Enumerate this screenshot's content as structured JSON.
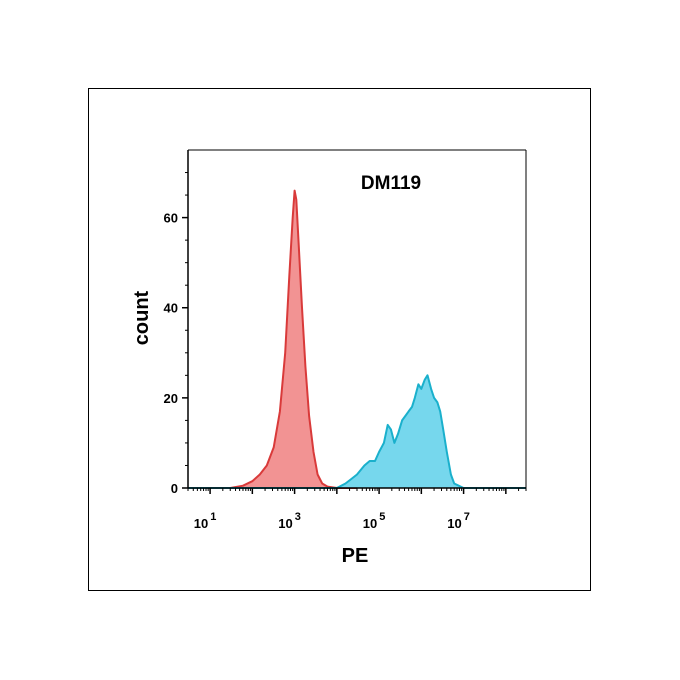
{
  "chart_data": {
    "type": "area",
    "title": "DM119",
    "xlabel": "PE",
    "ylabel": "count",
    "x_scale": "log",
    "xlim": [
      3,
      300000000
    ],
    "ylim": [
      0,
      75
    ],
    "x_ticks": [
      {
        "value": 10,
        "base": "10",
        "exp": "1"
      },
      {
        "value": 1000,
        "base": "10",
        "exp": "3"
      },
      {
        "value": 100000,
        "base": "10",
        "exp": "5"
      },
      {
        "value": 10000000,
        "base": "10",
        "exp": "7"
      }
    ],
    "y_ticks": [
      {
        "value": 0,
        "label": "0"
      },
      {
        "value": 20,
        "label": "20"
      },
      {
        "value": 40,
        "label": "40"
      },
      {
        "value": 60,
        "label": "60"
      }
    ],
    "grid": false,
    "legend": "none",
    "series": [
      {
        "color": "#f08080",
        "line_color": "#d93a3a",
        "x": [
          3,
          30,
          60,
          100,
          150,
          220,
          320,
          450,
          600,
          750,
          900,
          1000,
          1100,
          1250,
          1500,
          1800,
          2200,
          2800,
          3500,
          4500,
          6000,
          10000,
          30000
        ],
        "y": [
          0,
          0,
          0.5,
          1.5,
          3,
          5,
          9,
          17,
          30,
          47,
          60,
          66,
          64,
          54,
          40,
          27,
          16,
          8,
          3,
          1,
          0.3,
          0,
          0
        ]
      },
      {
        "color": "#5ed0ea",
        "line_color": "#1ab0cc",
        "x": [
          3,
          3000,
          10000,
          16000,
          22000,
          30000,
          45000,
          60000,
          80000,
          100000,
          130000,
          160000,
          190000,
          230000,
          280000,
          350000,
          420000,
          500000,
          600000,
          700000,
          850000,
          1000000,
          1200000,
          1400000,
          1700000,
          2000000,
          2400000,
          2800000,
          3300000,
          4000000,
          5000000,
          6000000,
          10000000,
          300000000
        ],
        "y": [
          0,
          0,
          0,
          1,
          2,
          3,
          5,
          6,
          6,
          8,
          10,
          14,
          13,
          10,
          12,
          15,
          16,
          17,
          18,
          20,
          23,
          22,
          24,
          25,
          22,
          20,
          19,
          17,
          13,
          8,
          3,
          1,
          0,
          0
        ]
      }
    ]
  }
}
